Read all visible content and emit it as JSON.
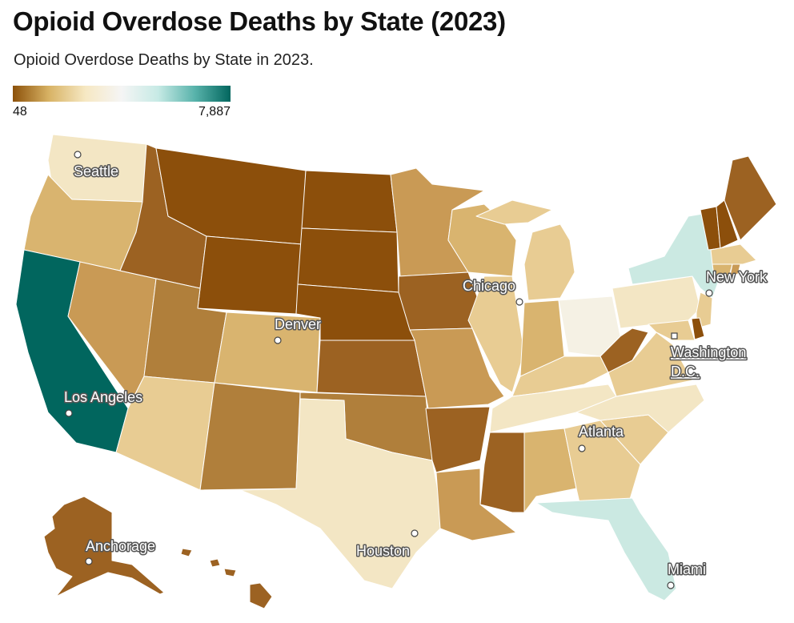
{
  "header": {
    "title": "Opioid Overdose Deaths by State (2023)",
    "subtitle": "Opioid Overdose Deaths by State in 2023."
  },
  "legend": {
    "min_label": "48",
    "max_label": "7,887",
    "colors": [
      "#8c510a",
      "#d8b365",
      "#f6e8c3",
      "#f5f5f5",
      "#c7eae5",
      "#5ab4ac",
      "#01665e"
    ]
  },
  "map": {
    "colors": {
      "darkest_brown": "#8c4f0b",
      "dark_brown": "#9c6222",
      "brown": "#b07f3b",
      "light_brown": "#c99a55",
      "tan": "#d9b46f",
      "light_tan": "#e8cc93",
      "cream": "#f3e6c4",
      "off_white": "#f5f1e4",
      "light_teal": "#cbe9e2",
      "teal": "#01665e"
    },
    "cities": [
      {
        "name": "Seattle",
        "dc": false
      },
      {
        "name": "Chicago",
        "dc": false
      },
      {
        "name": "New York",
        "dc": false
      },
      {
        "name": "Denver",
        "dc": false
      },
      {
        "name": "Washington D.C.",
        "line1": "Washington",
        "line2": "D.C.",
        "dc": true
      },
      {
        "name": "Los Angeles",
        "dc": false
      },
      {
        "name": "Atlanta",
        "dc": false
      },
      {
        "name": "Houston",
        "dc": false
      },
      {
        "name": "Anchorage",
        "dc": false
      },
      {
        "name": "Miami",
        "dc": false
      }
    ]
  }
}
